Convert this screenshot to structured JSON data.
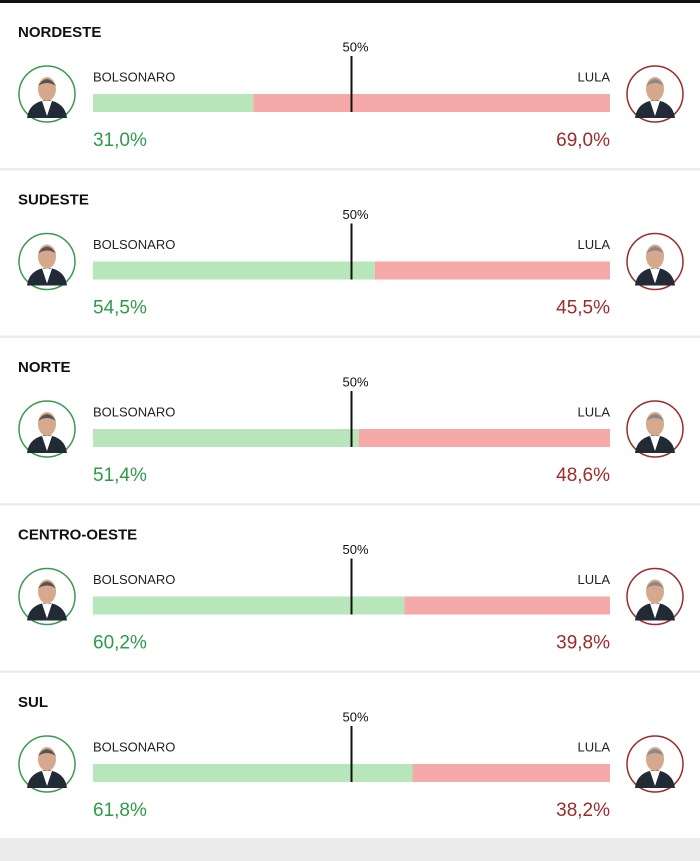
{
  "chart_data": [
    {
      "type": "stacked-bar",
      "title": "NORDESTE",
      "xlim": [
        0,
        100
      ],
      "xticks": [
        {
          "value": 50,
          "label": "50%"
        }
      ],
      "series": [
        {
          "name": "BOLSONARO",
          "color": "#b6e6ba",
          "values": [
            31.0
          ],
          "value_labels": [
            "31,0%"
          ]
        },
        {
          "name": "LULA",
          "color": "#f5aaa9",
          "values": [
            69.0
          ],
          "value_labels": [
            "69,0%"
          ]
        }
      ]
    },
    {
      "type": "stacked-bar",
      "title": "SUDESTE",
      "xlim": [
        0,
        100
      ],
      "xticks": [
        {
          "value": 50,
          "label": "50%"
        }
      ],
      "series": [
        {
          "name": "BOLSONARO",
          "color": "#b6e6ba",
          "values": [
            54.5
          ],
          "value_labels": [
            "54,5%"
          ]
        },
        {
          "name": "LULA",
          "color": "#f5aaa9",
          "values": [
            45.5
          ],
          "value_labels": [
            "45,5%"
          ]
        }
      ]
    },
    {
      "type": "stacked-bar",
      "title": "NORTE",
      "xlim": [
        0,
        100
      ],
      "xticks": [
        {
          "value": 50,
          "label": "50%"
        }
      ],
      "series": [
        {
          "name": "BOLSONARO",
          "color": "#b6e6ba",
          "values": [
            51.4
          ],
          "value_labels": [
            "51,4%"
          ]
        },
        {
          "name": "LULA",
          "color": "#f5aaa9",
          "values": [
            48.6
          ],
          "value_labels": [
            "48,6%"
          ]
        }
      ]
    },
    {
      "type": "stacked-bar",
      "title": "CENTRO-OESTE",
      "xlim": [
        0,
        100
      ],
      "xticks": [
        {
          "value": 50,
          "label": "50%"
        }
      ],
      "series": [
        {
          "name": "BOLSONARO",
          "color": "#b6e6ba",
          "values": [
            60.2
          ],
          "value_labels": [
            "60,2%"
          ]
        },
        {
          "name": "LULA",
          "color": "#f5aaa9",
          "values": [
            39.8
          ],
          "value_labels": [
            "39,8%"
          ]
        }
      ]
    },
    {
      "type": "stacked-bar",
      "title": "SUL",
      "xlim": [
        0,
        100
      ],
      "xticks": [
        {
          "value": 50,
          "label": "50%"
        }
      ],
      "series": [
        {
          "name": "BOLSONARO",
          "color": "#b6e6ba",
          "values": [
            61.8
          ],
          "value_labels": [
            "61,8%"
          ]
        },
        {
          "name": "LULA",
          "color": "#f5aaa9",
          "values": [
            38.2
          ],
          "value_labels": [
            "38,2%"
          ]
        }
      ]
    }
  ]
}
